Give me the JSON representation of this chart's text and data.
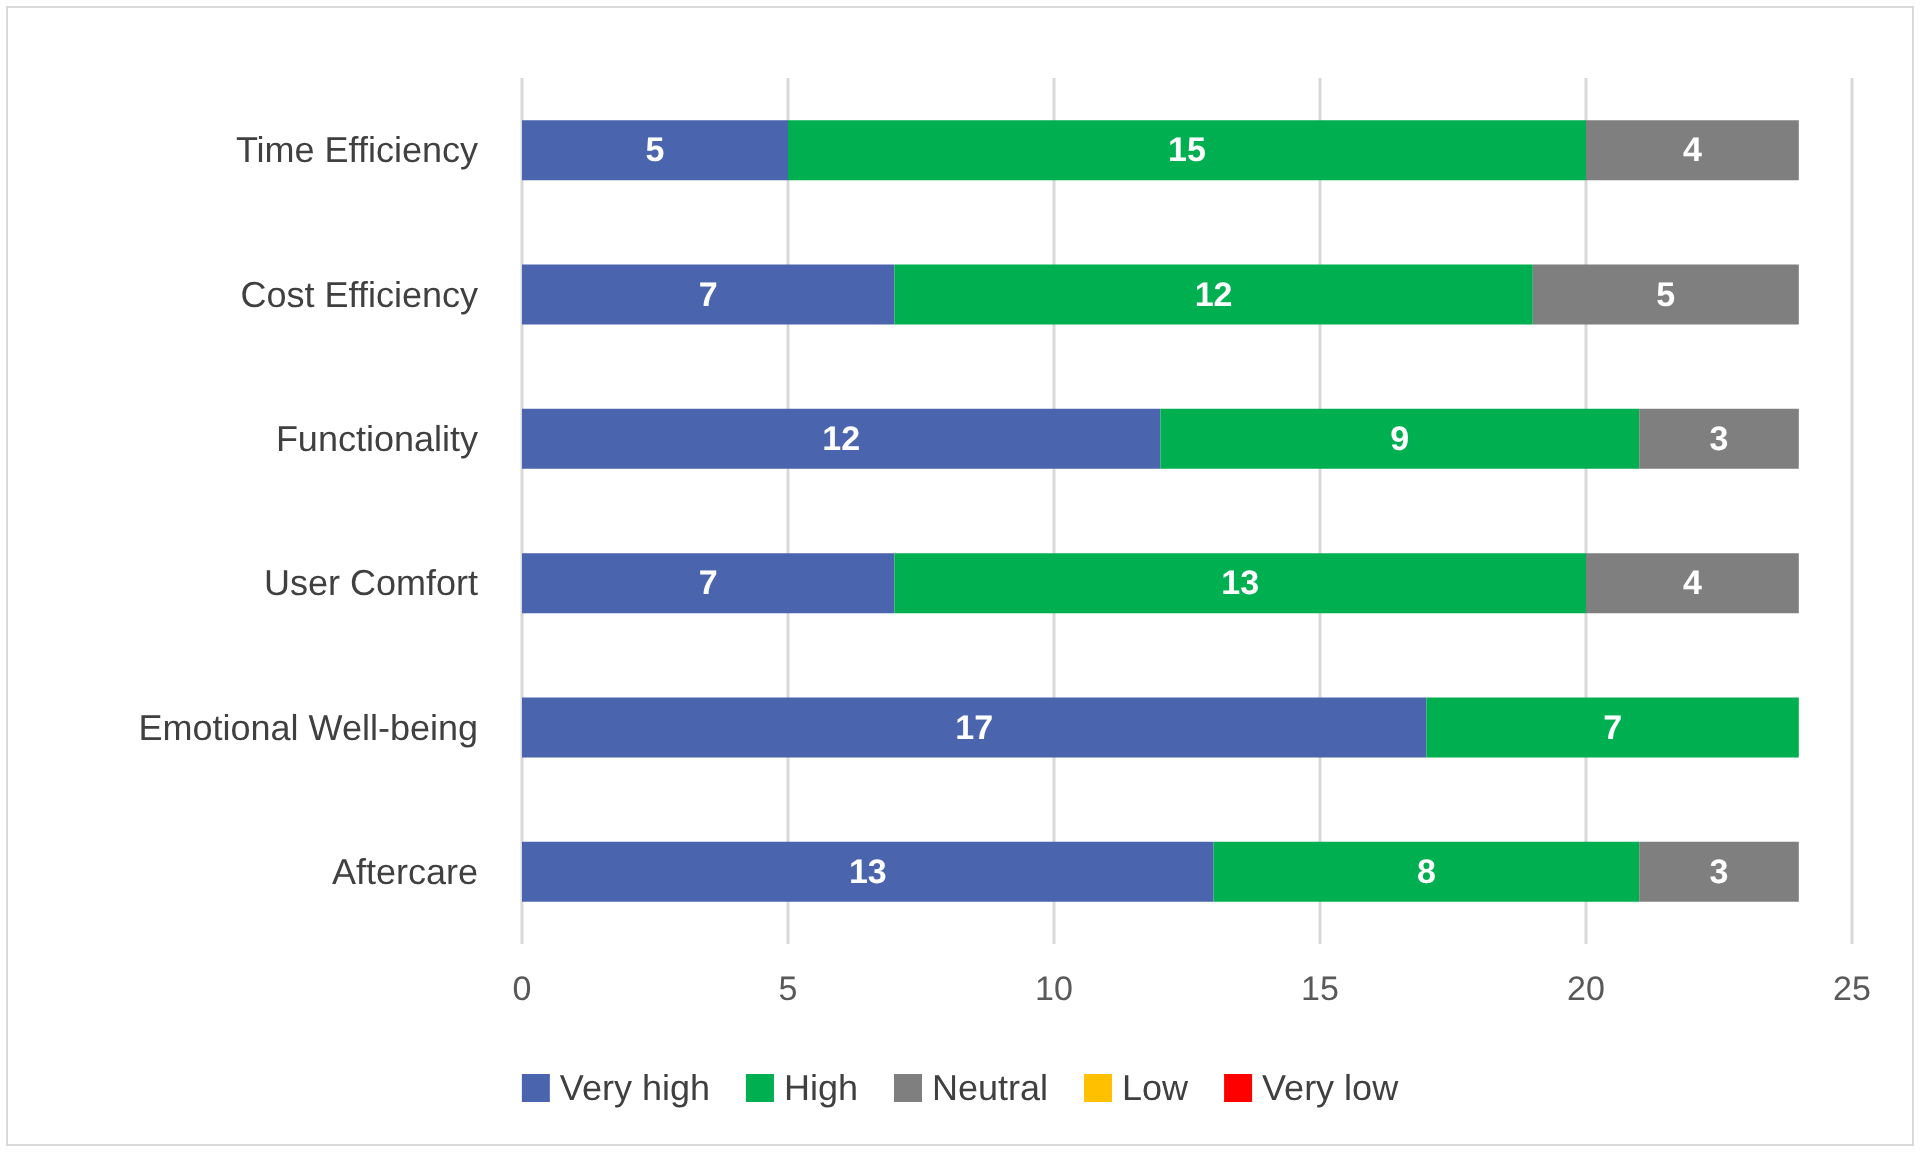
{
  "chart_data": {
    "type": "bar",
    "orientation": "horizontal",
    "stacked": true,
    "categories": [
      "Time Efficiency",
      "Cost Efficiency",
      "Functionality",
      "User Comfort",
      "Emotional Well-being",
      "Aftercare"
    ],
    "series": [
      {
        "name": "Very high",
        "color": "#4a64ae",
        "values": [
          5,
          7,
          12,
          7,
          17,
          13
        ]
      },
      {
        "name": "High",
        "color": "#00b050",
        "values": [
          15,
          12,
          9,
          13,
          7,
          8
        ]
      },
      {
        "name": "Neutral",
        "color": "#7f7f7f",
        "values": [
          4,
          5,
          3,
          4,
          null,
          3
        ]
      },
      {
        "name": "Low",
        "color": "#ffc000",
        "values": [
          null,
          null,
          null,
          null,
          null,
          null
        ]
      },
      {
        "name": "Very low",
        "color": "#ff0000",
        "values": [
          null,
          null,
          null,
          null,
          null,
          null
        ]
      }
    ],
    "xlim": [
      0,
      25
    ],
    "xticks": [
      0,
      5,
      10,
      15,
      20,
      25
    ],
    "grid": "x",
    "legend": "bottom",
    "data_labels": true
  }
}
